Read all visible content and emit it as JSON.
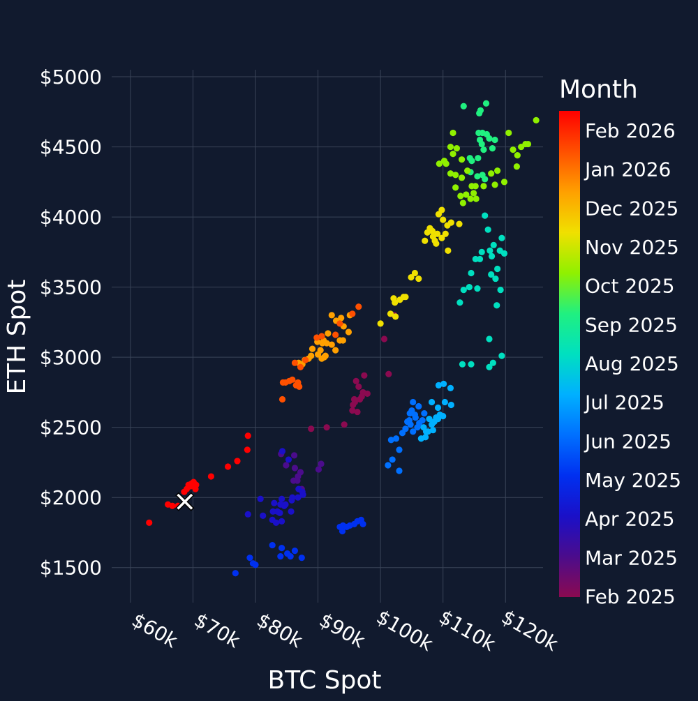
{
  "chart_data": {
    "type": "scatter",
    "title": "",
    "xlabel": "BTC Spot",
    "ylabel": "ETH Spot",
    "xlim": [
      57000,
      126000
    ],
    "ylim": [
      1250,
      5050
    ],
    "x_ticks": [
      60000,
      70000,
      80000,
      90000,
      100000,
      110000,
      120000
    ],
    "x_tick_labels": [
      "$60k",
      "$70k",
      "$80k",
      "$90k",
      "$100k",
      "$110k",
      "$120k"
    ],
    "y_ticks": [
      1500,
      2000,
      2500,
      3000,
      3500,
      4000,
      4500,
      5000
    ],
    "y_tick_labels": [
      "$1500",
      "$2000",
      "$2500",
      "$3000",
      "$3500",
      "$4000",
      "$4500",
      "$5000"
    ],
    "grid": true,
    "background": "#111a2e",
    "grid_color": "#3a4458",
    "colorbar": {
      "title": "Month",
      "position": "right",
      "colorscale": "jet (purple at Feb 2025 to red at Feb 2026)",
      "tick_labels": [
        "Feb 2025",
        "Mar 2025",
        "Apr 2025",
        "May 2025",
        "Jun 2025",
        "Jul 2025",
        "Aug 2025",
        "Sep 2025",
        "Oct 2025",
        "Nov 2025",
        "Dec 2025",
        "Jan 2026",
        "Feb 2026"
      ],
      "colors": [
        "#8b0a50",
        "#4b0c8c",
        "#1a10c8",
        "#0030f0",
        "#0070ff",
        "#00b0ff",
        "#00e0c0",
        "#20f080",
        "#90f000",
        "#f0e000",
        "#ffa000",
        "#ff5000",
        "#ff0000"
      ]
    },
    "marker": {
      "symbol": "x",
      "btc": 68700,
      "eth": 1970,
      "color": "#ffffff"
    },
    "series": [
      {
        "month_index": 0,
        "points": [
          [
            100600,
            3130
          ],
          [
            101300,
            2880
          ],
          [
            102200,
            3300
          ],
          [
            97400,
            2870
          ],
          [
            96100,
            2830
          ],
          [
            97200,
            2750
          ],
          [
            96700,
            2700
          ],
          [
            95900,
            2680
          ],
          [
            95500,
            2620
          ],
          [
            96300,
            2610
          ],
          [
            97900,
            2740
          ],
          [
            96500,
            2790
          ],
          [
            95600,
            2660
          ],
          [
            97000,
            2720
          ],
          [
            95800,
            2700
          ],
          [
            94200,
            2520
          ],
          [
            91400,
            2500
          ],
          [
            88900,
            2490
          ]
        ]
      },
      {
        "month_index": 1,
        "points": [
          [
            86200,
            2300
          ],
          [
            84100,
            2310
          ],
          [
            84900,
            2230
          ],
          [
            86300,
            2210
          ],
          [
            86800,
            2150
          ],
          [
            87200,
            2180
          ],
          [
            90100,
            2200
          ],
          [
            90500,
            2240
          ],
          [
            86700,
            2120
          ],
          [
            86100,
            2120
          ],
          [
            87400,
            2060
          ]
        ]
      },
      {
        "month_index": 2,
        "points": [
          [
            84300,
            2330
          ],
          [
            85300,
            2270
          ],
          [
            83000,
            1960
          ],
          [
            84000,
            1950
          ],
          [
            83500,
            1900
          ],
          [
            85700,
            1900
          ],
          [
            81200,
            1870
          ],
          [
            82700,
            1840
          ],
          [
            83300,
            1820
          ],
          [
            84200,
            1830
          ],
          [
            86800,
            2000
          ],
          [
            87500,
            2040
          ],
          [
            87600,
            2020
          ],
          [
            86900,
            2060
          ],
          [
            85800,
            1980
          ],
          [
            84600,
            1940
          ],
          [
            82800,
            1900
          ],
          [
            84200,
            1990
          ],
          [
            84800,
            1950
          ],
          [
            83900,
            1890
          ],
          [
            85900,
            2000
          ],
          [
            80800,
            1990
          ],
          [
            78800,
            1880
          ]
        ]
      },
      {
        "month_index": 3,
        "points": [
          [
            82700,
            1660
          ],
          [
            84200,
            1640
          ],
          [
            85100,
            1600
          ],
          [
            86300,
            1620
          ],
          [
            84000,
            1580
          ],
          [
            85600,
            1580
          ],
          [
            87400,
            1570
          ],
          [
            79100,
            1570
          ],
          [
            79600,
            1530
          ],
          [
            80000,
            1520
          ],
          [
            76800,
            1460
          ],
          [
            93500,
            1790
          ],
          [
            94000,
            1800
          ],
          [
            93900,
            1760
          ],
          [
            94600,
            1790
          ],
          [
            95100,
            1800
          ],
          [
            95800,
            1810
          ],
          [
            96300,
            1830
          ],
          [
            96900,
            1840
          ],
          [
            97200,
            1810
          ]
        ]
      },
      {
        "month_index": 4,
        "points": [
          [
            101200,
            2230
          ],
          [
            101900,
            2270
          ],
          [
            103000,
            2190
          ],
          [
            103000,
            2340
          ],
          [
            102500,
            2420
          ],
          [
            101700,
            2410
          ],
          [
            103500,
            2460
          ],
          [
            104000,
            2490
          ],
          [
            104300,
            2540
          ],
          [
            104700,
            2600
          ],
          [
            105000,
            2620
          ],
          [
            105600,
            2570
          ],
          [
            106200,
            2530
          ],
          [
            106700,
            2550
          ],
          [
            105200,
            2470
          ],
          [
            104800,
            2520
          ],
          [
            105900,
            2500
          ],
          [
            106100,
            2650
          ],
          [
            105200,
            2680
          ],
          [
            104600,
            2550
          ],
          [
            105500,
            2590
          ],
          [
            107000,
            2600
          ]
        ]
      },
      {
        "month_index": 5,
        "points": [
          [
            106500,
            2420
          ],
          [
            107200,
            2430
          ],
          [
            107600,
            2470
          ],
          [
            108200,
            2520
          ],
          [
            108600,
            2540
          ],
          [
            109200,
            2560
          ],
          [
            109500,
            2590
          ],
          [
            110000,
            2580
          ],
          [
            107800,
            2560
          ],
          [
            108900,
            2570
          ],
          [
            108200,
            2680
          ],
          [
            109200,
            2640
          ],
          [
            110300,
            2680
          ],
          [
            111300,
            2660
          ],
          [
            109300,
            2800
          ],
          [
            110100,
            2810
          ],
          [
            111200,
            2780
          ],
          [
            106900,
            2500
          ],
          [
            107300,
            2470
          ],
          [
            108400,
            2480
          ]
        ]
      },
      {
        "month_index": 6,
        "points": [
          [
            113100,
            2950
          ],
          [
            114500,
            2950
          ],
          [
            117400,
            2930
          ],
          [
            118000,
            2960
          ],
          [
            119400,
            3010
          ],
          [
            117400,
            3130
          ],
          [
            112700,
            3390
          ],
          [
            113300,
            3480
          ],
          [
            114200,
            3500
          ],
          [
            115500,
            3490
          ],
          [
            115200,
            3700
          ],
          [
            115900,
            3700
          ],
          [
            114500,
            3600
          ],
          [
            116200,
            3750
          ],
          [
            117800,
            3720
          ],
          [
            118700,
            3630
          ],
          [
            119100,
            3760
          ],
          [
            119800,
            3740
          ],
          [
            117500,
            3760
          ],
          [
            118100,
            3800
          ],
          [
            117200,
            3910
          ],
          [
            119400,
            3850
          ],
          [
            116700,
            4010
          ],
          [
            119200,
            3480
          ],
          [
            118600,
            3370
          ],
          [
            117700,
            3590
          ],
          [
            118400,
            3560
          ]
        ]
      },
      {
        "month_index": 7,
        "points": [
          [
            114400,
            4320
          ],
          [
            115500,
            4290
          ],
          [
            116300,
            4300
          ],
          [
            116700,
            4270
          ],
          [
            115900,
            4550
          ],
          [
            116300,
            4600
          ],
          [
            115700,
            4600
          ],
          [
            117000,
            4590
          ],
          [
            117400,
            4560
          ],
          [
            116200,
            4520
          ],
          [
            116500,
            4480
          ],
          [
            118300,
            4550
          ],
          [
            117900,
            4490
          ],
          [
            115800,
            4740
          ],
          [
            116000,
            4760
          ],
          [
            116900,
            4810
          ],
          [
            114600,
            4400
          ],
          [
            114300,
            4420
          ],
          [
            115600,
            4420
          ],
          [
            113300,
            4790
          ]
        ]
      },
      {
        "month_index": 8,
        "points": [
          [
            109400,
            4380
          ],
          [
            110500,
            4380
          ],
          [
            111200,
            4310
          ],
          [
            112000,
            4300
          ],
          [
            113000,
            4280
          ],
          [
            113900,
            4330
          ],
          [
            114600,
            4220
          ],
          [
            115200,
            4220
          ],
          [
            113700,
            4160
          ],
          [
            112800,
            4150
          ],
          [
            114900,
            4170
          ],
          [
            115300,
            4130
          ],
          [
            116500,
            4220
          ],
          [
            114400,
            4130
          ],
          [
            113200,
            4100
          ],
          [
            117700,
            4310
          ],
          [
            118700,
            4330
          ],
          [
            118300,
            4230
          ],
          [
            119800,
            4250
          ],
          [
            121200,
            4480
          ],
          [
            121900,
            4440
          ],
          [
            122500,
            4500
          ],
          [
            123200,
            4520
          ],
          [
            123600,
            4520
          ],
          [
            124900,
            4690
          ],
          [
            121800,
            4360
          ],
          [
            120500,
            4600
          ],
          [
            111200,
            4500
          ],
          [
            112200,
            4490
          ],
          [
            111600,
            4600
          ],
          [
            112000,
            4210
          ],
          [
            113000,
            4410
          ],
          [
            111600,
            4450
          ],
          [
            110200,
            4400
          ]
        ]
      },
      {
        "month_index": 9,
        "points": [
          [
            107500,
            3890
          ],
          [
            108300,
            3900
          ],
          [
            109100,
            3880
          ],
          [
            109800,
            3850
          ],
          [
            110400,
            3880
          ],
          [
            110700,
            3940
          ],
          [
            111300,
            3960
          ],
          [
            110000,
            3980
          ],
          [
            109300,
            4020
          ],
          [
            109800,
            4050
          ],
          [
            108400,
            3860
          ],
          [
            107900,
            3920
          ],
          [
            108900,
            3810
          ],
          [
            107100,
            3830
          ],
          [
            108700,
            3830
          ],
          [
            110800,
            3760
          ],
          [
            112600,
            3950
          ],
          [
            104900,
            3570
          ],
          [
            105500,
            3600
          ],
          [
            106100,
            3560
          ],
          [
            102300,
            3390
          ],
          [
            103100,
            3410
          ],
          [
            103700,
            3430
          ],
          [
            104000,
            3430
          ],
          [
            102100,
            3420
          ],
          [
            101600,
            3310
          ],
          [
            100000,
            3240
          ],
          [
            102400,
            3290
          ]
        ]
      },
      {
        "month_index": 10,
        "points": [
          [
            92200,
            3300
          ],
          [
            92900,
            3260
          ],
          [
            93700,
            3280
          ],
          [
            95100,
            3300
          ],
          [
            94100,
            3220
          ],
          [
            94900,
            3180
          ],
          [
            93500,
            3120
          ],
          [
            94000,
            3120
          ],
          [
            92800,
            3050
          ],
          [
            92200,
            3090
          ],
          [
            91400,
            3100
          ],
          [
            91200,
            3010
          ],
          [
            91000,
            3000
          ],
          [
            90600,
            2990
          ],
          [
            90400,
            3050
          ],
          [
            90900,
            3120
          ],
          [
            91600,
            3170
          ],
          [
            90700,
            3100
          ],
          [
            89900,
            3110
          ],
          [
            89100,
            3060
          ],
          [
            90000,
            3020
          ],
          [
            88900,
            3010
          ],
          [
            88500,
            2990
          ],
          [
            87900,
            2980
          ],
          [
            87500,
            2950
          ],
          [
            86900,
            2960
          ]
        ]
      },
      {
        "month_index": 11,
        "points": [
          [
            96500,
            3360
          ],
          [
            95500,
            3310
          ],
          [
            93500,
            3240
          ],
          [
            92800,
            3160
          ],
          [
            90600,
            3150
          ],
          [
            89800,
            3140
          ],
          [
            88000,
            2980
          ],
          [
            87200,
            2930
          ],
          [
            86300,
            2960
          ],
          [
            85400,
            2830
          ],
          [
            84800,
            2820
          ],
          [
            84400,
            2820
          ],
          [
            85900,
            2840
          ],
          [
            86500,
            2800
          ],
          [
            86800,
            2820
          ],
          [
            87000,
            2790
          ],
          [
            84300,
            2700
          ]
        ]
      },
      {
        "month_index": 12,
        "points": [
          [
            78800,
            2440
          ],
          [
            78700,
            2340
          ],
          [
            77100,
            2260
          ],
          [
            75600,
            2220
          ],
          [
            72900,
            2150
          ],
          [
            70500,
            2090
          ],
          [
            69600,
            2080
          ],
          [
            70100,
            2110
          ],
          [
            70400,
            2060
          ],
          [
            69800,
            2100
          ],
          [
            69300,
            2090
          ],
          [
            69000,
            2060
          ],
          [
            68600,
            2040
          ],
          [
            67600,
            1940
          ],
          [
            66700,
            1940
          ],
          [
            66000,
            1950
          ],
          [
            63000,
            1820
          ]
        ]
      }
    ]
  }
}
